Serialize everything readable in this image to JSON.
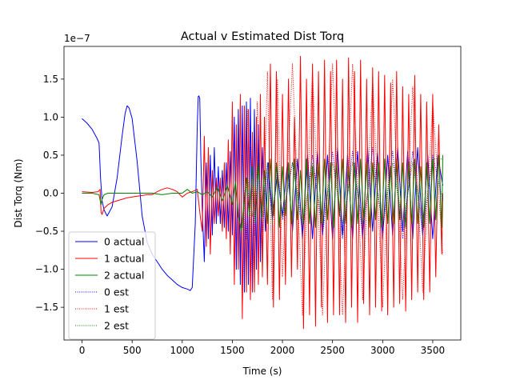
{
  "chart_data": {
    "type": "line",
    "title": "Actual v Estimated Dist Torq",
    "xlabel": "Time (s)",
    "ylabel": "Dist Torq (Nm)",
    "y_offset_label": "1e−7",
    "xlim": [
      -180,
      3780
    ],
    "ylim": [
      -1.93,
      1.93
    ],
    "x_ticks": [
      0,
      500,
      1000,
      1500,
      2000,
      2500,
      3000,
      3500
    ],
    "x_tick_labels": [
      "0",
      "500",
      "1000",
      "1500",
      "2000",
      "2500",
      "3000",
      "3500"
    ],
    "y_ticks": [
      -1.5,
      -1.0,
      -0.5,
      0.0,
      0.5,
      1.0,
      1.5
    ],
    "y_tick_labels": [
      "−1.5",
      "−1.0",
      "−0.5",
      "0.0",
      "0.5",
      "1.0",
      "1.5"
    ],
    "legend_position": "lower-left",
    "series": [
      {
        "name": "0 actual",
        "color": "#0000ff",
        "style": "solid",
        "x": [
          0,
          50,
          100,
          150,
          170,
          185,
          200,
          220,
          250,
          300,
          350,
          400,
          430,
          450,
          470,
          500,
          550,
          600,
          650,
          700,
          750,
          800,
          850,
          900,
          950,
          1000,
          1050,
          1080,
          1100,
          1130,
          1150,
          1160,
          1165,
          1175,
          1185,
          1200,
          1220,
          1240,
          1260,
          1280,
          1300,
          1320,
          1340,
          1360,
          1380,
          1400,
          1420,
          1440,
          1460,
          1480,
          1500,
          1520,
          1540,
          1560,
          1580,
          1600,
          1620,
          1640,
          1660,
          1680,
          1700,
          1720,
          1740,
          1760,
          1780,
          1800,
          1830,
          1860,
          1900,
          1950,
          2000,
          2050,
          2100,
          2150,
          2200,
          2250,
          2300,
          2350,
          2400,
          2450,
          2500,
          2550,
          2600,
          2650,
          2700,
          2750,
          2800,
          2850,
          2900,
          2950,
          3000,
          3050,
          3100,
          3150,
          3200,
          3250,
          3300,
          3350,
          3400,
          3450,
          3500,
          3550,
          3600
        ],
        "y": [
          0.98,
          0.92,
          0.84,
          0.72,
          0.66,
          0.2,
          -0.1,
          -0.22,
          -0.3,
          -0.18,
          0.2,
          0.75,
          1.05,
          1.15,
          1.12,
          0.98,
          0.42,
          -0.3,
          -0.65,
          -0.8,
          -0.9,
          -1.0,
          -1.08,
          -1.14,
          -1.2,
          -1.24,
          -1.26,
          -1.28,
          -1.24,
          -0.4,
          0.9,
          1.27,
          1.28,
          1.25,
          0.5,
          -0.2,
          -0.9,
          0.4,
          -0.6,
          0.5,
          -0.55,
          0.6,
          -0.4,
          0.35,
          -0.4,
          0.3,
          -0.45,
          0.4,
          -0.5,
          0.55,
          -0.55,
          1.0,
          -1.0,
          1.1,
          -1.2,
          1.15,
          -1.3,
          1.2,
          -1.2,
          1.25,
          -1.3,
          1.1,
          -1.0,
          0.9,
          -0.9,
          0.6,
          -0.5,
          0.4,
          -0.3,
          0.25,
          -0.3,
          0.4,
          -0.5,
          0.45,
          -0.6,
          0.5,
          -0.6,
          0.55,
          -0.55,
          0.5,
          -0.6,
          0.6,
          -0.55,
          0.5,
          -0.6,
          0.55,
          -0.6,
          0.6,
          -0.5,
          0.55,
          -0.6,
          0.5,
          -0.55,
          0.6,
          -0.5,
          0.55,
          -0.6,
          0.6,
          -0.55,
          0.5,
          -0.6,
          0.5,
          0.1
        ]
      },
      {
        "name": "1 actual",
        "color": "#ff0000",
        "style": "solid",
        "x": [
          0,
          100,
          160,
          180,
          190,
          200,
          220,
          260,
          300,
          350,
          400,
          450,
          500,
          550,
          600,
          650,
          700,
          750,
          800,
          850,
          900,
          950,
          1000,
          1050,
          1100,
          1150,
          1180,
          1200,
          1220,
          1240,
          1260,
          1280,
          1300,
          1320,
          1340,
          1360,
          1380,
          1400,
          1420,
          1440,
          1460,
          1480,
          1500,
          1520,
          1540,
          1560,
          1580,
          1600,
          1620,
          1640,
          1660,
          1680,
          1700,
          1720,
          1740,
          1760,
          1780,
          1800,
          1820,
          1850,
          1880,
          1910,
          1940,
          1970,
          2000,
          2030,
          2060,
          2090,
          2120,
          2150,
          2180,
          2210,
          2240,
          2270,
          2300,
          2330,
          2360,
          2390,
          2420,
          2450,
          2480,
          2510,
          2540,
          2570,
          2600,
          2630,
          2660,
          2690,
          2720,
          2750,
          2780,
          2810,
          2840,
          2870,
          2900,
          2930,
          2960,
          2990,
          3020,
          3050,
          3080,
          3110,
          3140,
          3170,
          3200,
          3230,
          3260,
          3290,
          3320,
          3350,
          3380,
          3410,
          3440,
          3470,
          3500,
          3530,
          3560,
          3590,
          3600
        ],
        "y": [
          0.02,
          0.01,
          0.02,
          0.05,
          -0.25,
          -0.28,
          -0.2,
          -0.15,
          -0.12,
          -0.1,
          -0.08,
          -0.06,
          -0.05,
          -0.04,
          -0.03,
          -0.02,
          -0.02,
          0.02,
          0.05,
          0.07,
          0.05,
          0.02,
          -0.05,
          0.0,
          0.02,
          0.05,
          -0.3,
          -0.5,
          0.75,
          -0.7,
          0.6,
          -0.8,
          0.3,
          -0.4,
          0.2,
          -0.3,
          0.2,
          -0.5,
          0.4,
          -0.6,
          0.7,
          -0.8,
          1.2,
          -1.2,
          0.9,
          -1.0,
          1.3,
          -1.65,
          1.15,
          -1.3,
          1.1,
          -1.4,
          0.8,
          -1.3,
          1.0,
          -1.2,
          1.3,
          -1.1,
          1.0,
          -1.2,
          1.7,
          -1.5,
          1.6,
          -1.4,
          1.3,
          -1.2,
          1.5,
          -1.1,
          1.0,
          -1.0,
          1.8,
          -1.78,
          1.5,
          -1.6,
          1.7,
          -1.75,
          1.6,
          -1.5,
          1.75,
          -1.7,
          1.6,
          -1.6,
          1.75,
          -1.6,
          1.5,
          -1.7,
          1.78,
          -1.5,
          1.6,
          -1.7,
          1.75,
          -1.45,
          1.5,
          -1.6,
          1.65,
          -1.5,
          1.6,
          -1.55,
          1.55,
          -1.6,
          1.45,
          -1.5,
          1.6,
          -1.45,
          1.4,
          -1.55,
          1.3,
          -1.4,
          1.55,
          -1.3,
          1.3,
          -1.4,
          1.2,
          -1.3,
          1.3,
          -1.1,
          0.9,
          -0.8,
          0.0
        ]
      },
      {
        "name": "2 actual",
        "color": "#008000",
        "style": "solid",
        "x": [
          0,
          100,
          170,
          190,
          200,
          220,
          260,
          300,
          400,
          500,
          600,
          700,
          800,
          900,
          1000,
          1050,
          1100,
          1150,
          1200,
          1250,
          1300,
          1350,
          1400,
          1450,
          1500,
          1530,
          1560,
          1590,
          1610,
          1640,
          1670,
          1700,
          1730,
          1760,
          1790,
          1820,
          1850,
          1880,
          1910,
          1940,
          1970,
          2000,
          2030,
          2060,
          2090,
          2120,
          2150,
          2180,
          2210,
          2240,
          2270,
          2300,
          2330,
          2360,
          2390,
          2420,
          2450,
          2480,
          2510,
          2540,
          2570,
          2600,
          2630,
          2660,
          2690,
          2720,
          2750,
          2780,
          2810,
          2840,
          2870,
          2900,
          2930,
          2960,
          2990,
          3020,
          3050,
          3080,
          3110,
          3140,
          3170,
          3200,
          3230,
          3260,
          3290,
          3320,
          3350,
          3380,
          3410,
          3440,
          3470,
          3500,
          3530,
          3560,
          3590,
          3600
        ],
        "y": [
          0.0,
          0.0,
          -0.02,
          -0.15,
          -0.08,
          -0.02,
          0.0,
          0.0,
          0.0,
          0.0,
          0.0,
          0.0,
          -0.02,
          0.0,
          0.0,
          0.05,
          0.0,
          0.02,
          -0.02,
          0.02,
          -0.05,
          0.08,
          -0.1,
          0.1,
          -0.15,
          0.15,
          -0.3,
          -0.5,
          -0.2,
          0.2,
          -0.3,
          0.35,
          -0.4,
          0.4,
          -0.35,
          0.3,
          -0.4,
          0.45,
          -0.3,
          0.4,
          -0.45,
          0.35,
          -0.3,
          0.4,
          -0.4,
          0.45,
          -0.35,
          0.3,
          -0.4,
          0.45,
          -0.4,
          0.35,
          -0.45,
          0.4,
          -0.4,
          0.45,
          -0.35,
          0.4,
          -0.45,
          0.4,
          -0.3,
          0.45,
          -0.4,
          0.35,
          -0.45,
          0.4,
          -0.4,
          0.45,
          -0.35,
          0.4,
          -0.45,
          0.4,
          -0.35,
          0.4,
          -0.45,
          0.45,
          -0.4,
          0.35,
          -0.4,
          0.45,
          -0.35,
          0.4,
          -0.45,
          0.4,
          -0.4,
          0.45,
          -0.4,
          0.35,
          -0.45,
          0.4,
          -0.4,
          0.45,
          -0.35,
          0.5,
          -0.45,
          0.5
        ]
      },
      {
        "name": "0 est",
        "color": "#0000ff",
        "style": "dotted",
        "x": [
          1600,
          1640,
          1680,
          1720,
          1760,
          1800,
          1850,
          1900,
          1950,
          2000,
          2100,
          2200,
          2300,
          2400,
          2500,
          2600,
          2700,
          2800,
          2900,
          3000,
          3100,
          3200,
          3300,
          3400,
          3500,
          3600
        ],
        "y": [
          0.5,
          -0.6,
          0.6,
          -0.55,
          0.5,
          -0.5,
          0.4,
          -0.35,
          0.3,
          -0.35,
          0.4,
          -0.5,
          0.5,
          -0.55,
          0.55,
          -0.6,
          0.55,
          -0.55,
          0.6,
          -0.5,
          0.55,
          -0.6,
          0.55,
          -0.55,
          0.5,
          -0.1
        ]
      },
      {
        "name": "1 est",
        "color": "#ff0000",
        "style": "dotted",
        "x": [
          1600,
          1650,
          1700,
          1750,
          1800,
          1850,
          1900,
          1950,
          2000,
          2100,
          2200,
          2300,
          2400,
          2500,
          2600,
          2700,
          2800,
          2900,
          3000,
          3100,
          3200,
          3300,
          3400,
          3500,
          3600
        ],
        "y": [
          -1.5,
          1.1,
          -1.3,
          1.2,
          -1.0,
          1.6,
          -1.4,
          1.5,
          -1.1,
          1.7,
          -1.6,
          1.6,
          -1.6,
          1.7,
          -1.6,
          1.7,
          -1.4,
          1.5,
          -1.5,
          1.5,
          -1.4,
          1.4,
          -1.3,
          1.2,
          -0.8
        ]
      },
      {
        "name": "2 est",
        "color": "#008000",
        "style": "dotted",
        "x": [
          1600,
          1650,
          1700,
          1750,
          1800,
          1850,
          1900,
          1950,
          2000,
          2100,
          2200,
          2300,
          2400,
          2500,
          2600,
          2700,
          2800,
          2900,
          3000,
          3100,
          3200,
          3300,
          3400,
          3500,
          3600
        ],
        "y": [
          -0.45,
          0.2,
          -0.3,
          0.35,
          -0.3,
          0.4,
          -0.4,
          0.35,
          -0.3,
          0.4,
          -0.4,
          0.4,
          -0.4,
          0.4,
          -0.4,
          0.4,
          -0.4,
          0.4,
          -0.4,
          0.4,
          -0.4,
          0.4,
          -0.4,
          0.45,
          0.45
        ]
      }
    ]
  }
}
